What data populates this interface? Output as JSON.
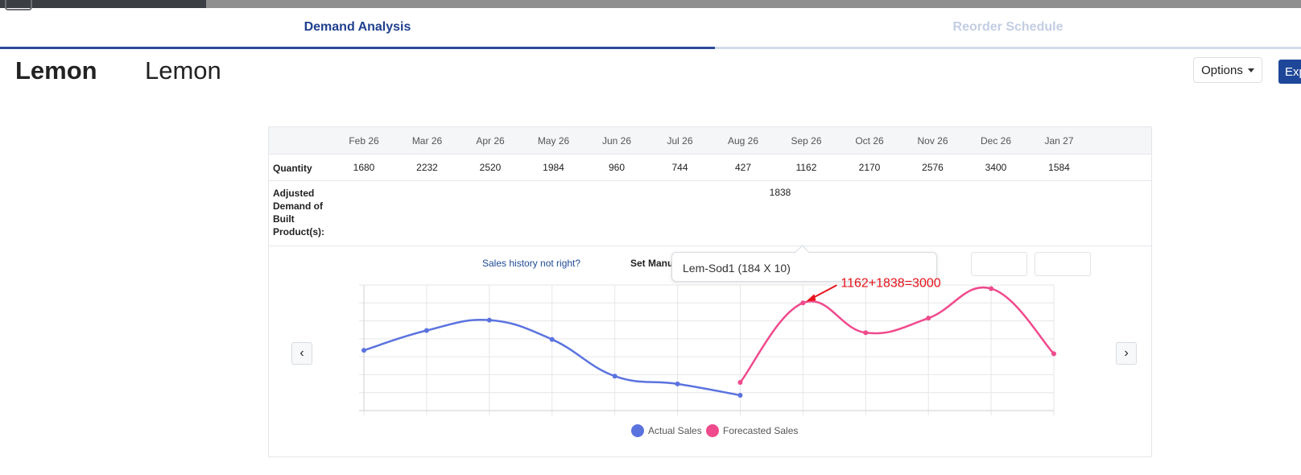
{
  "tabs": [
    {
      "label": "Demand Analysis",
      "active": true
    },
    {
      "label": "Reorder Schedule",
      "active": false
    }
  ],
  "product": {
    "name_bold": "Lemon",
    "name": "Lemon"
  },
  "toolbar": {
    "options_label": "Options",
    "export_label": "Exp"
  },
  "table": {
    "months": [
      "Feb 26",
      "Mar 26",
      "Apr 26",
      "May 26",
      "Jun 26",
      "Jul 26",
      "Aug 26",
      "Sep 26",
      "Oct 26",
      "Nov 26",
      "Dec 26",
      "Jan 27"
    ],
    "quantity_label": "Quantity",
    "quantities": [
      "1680",
      "2232",
      "2520",
      "1984",
      "960",
      "744",
      "427",
      "1162",
      "2170",
      "2576",
      "3400",
      "1584"
    ],
    "adjusted_label": "Adjusted Demand of Built Product(s):",
    "adjusted_value": "1838"
  },
  "links": {
    "sales_history": "Sales history not right?",
    "set_manual": "Set Manu"
  },
  "tooltip": {
    "text": "Lem-Sod1 (184 X 10)"
  },
  "annotation": {
    "text": "1162+1838=3000",
    "color": "#e8141c"
  },
  "nav": {
    "prev": "‹",
    "next": "›"
  },
  "chart_data": {
    "type": "line",
    "categories": [
      "Feb 26",
      "Mar 26",
      "Apr 26",
      "May 26",
      "Jun 26",
      "Jul 26",
      "Aug 26",
      "Sep 26",
      "Oct 26",
      "Nov 26",
      "Dec 26",
      "Jan 27"
    ],
    "series": [
      {
        "name": "Actual Sales",
        "color": "#5b73df",
        "values": [
          1680,
          2232,
          2520,
          1984,
          960,
          744,
          427,
          null,
          null,
          null,
          null,
          null
        ]
      },
      {
        "name": "Forecasted Sales",
        "color": "#f04a8c",
        "values": [
          null,
          null,
          null,
          null,
          null,
          null,
          427,
          3000,
          2170,
          2576,
          3400,
          1584
        ]
      }
    ],
    "ylim": [
      0,
      3500
    ],
    "grid": true,
    "legend": "bottom"
  }
}
